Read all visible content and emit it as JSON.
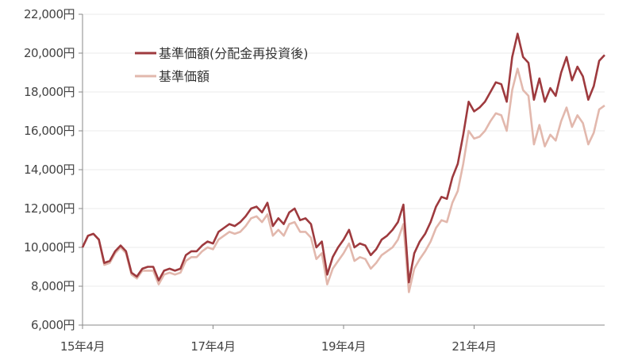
{
  "chart_data": {
    "type": "line",
    "title": "",
    "xlabel": "",
    "ylabel": "",
    "ylim": [
      6000,
      22000
    ],
    "yticks": [
      "6,000円",
      "8,000円",
      "10,000円",
      "12,000円",
      "14,000円",
      "16,000円",
      "18,000円",
      "20,000円",
      "22,000円"
    ],
    "ytick_values": [
      6000,
      8000,
      10000,
      12000,
      14000,
      16000,
      18000,
      20000,
      22000
    ],
    "xticks": [
      "15年4月",
      "17年4月",
      "19年4月",
      "21年4月"
    ],
    "xtick_values": [
      "2015-04",
      "2017-04",
      "2019-04",
      "2021-04"
    ],
    "grid": true,
    "legend_position": "top-left",
    "x": [
      "2015-04",
      "2015-05",
      "2015-06",
      "2015-07",
      "2015-08",
      "2015-09",
      "2015-10",
      "2015-11",
      "2015-12",
      "2016-01",
      "2016-02",
      "2016-03",
      "2016-04",
      "2016-05",
      "2016-06",
      "2016-07",
      "2016-08",
      "2016-09",
      "2016-10",
      "2016-11",
      "2016-12",
      "2017-01",
      "2017-02",
      "2017-03",
      "2017-04",
      "2017-05",
      "2017-06",
      "2017-07",
      "2017-08",
      "2017-09",
      "2017-10",
      "2017-11",
      "2017-12",
      "2018-01",
      "2018-02",
      "2018-03",
      "2018-04",
      "2018-05",
      "2018-06",
      "2018-07",
      "2018-08",
      "2018-09",
      "2018-10",
      "2018-11",
      "2018-12",
      "2019-01",
      "2019-02",
      "2019-03",
      "2019-04",
      "2019-05",
      "2019-06",
      "2019-07",
      "2019-08",
      "2019-09",
      "2019-10",
      "2019-11",
      "2019-12",
      "2020-01",
      "2020-02",
      "2020-03",
      "2020-04",
      "2020-05",
      "2020-06",
      "2020-07",
      "2020-08",
      "2020-09",
      "2020-10",
      "2020-11",
      "2020-12",
      "2021-01",
      "2021-02",
      "2021-03",
      "2021-04",
      "2021-05",
      "2021-06",
      "2021-07",
      "2021-08",
      "2021-09",
      "2021-10",
      "2021-11",
      "2021-12",
      "2022-01",
      "2022-02",
      "2022-03",
      "2022-04",
      "2022-05",
      "2022-06",
      "2022-07",
      "2022-08",
      "2022-09",
      "2022-10",
      "2022-11",
      "2022-12",
      "2023-01",
      "2023-02",
      "2023-03",
      "2023-04"
    ],
    "series": [
      {
        "name": "基準価額",
        "color": "#e2b8ad",
        "values": [
          10000,
          10600,
          10700,
          10400,
          9100,
          9200,
          9700,
          10000,
          9700,
          8600,
          8400,
          8800,
          8800,
          8800,
          8100,
          8600,
          8700,
          8600,
          8700,
          9300,
          9500,
          9500,
          9800,
          10000,
          9900,
          10400,
          10600,
          10800,
          10700,
          10800,
          11100,
          11500,
          11600,
          11300,
          11700,
          10600,
          10900,
          10600,
          11200,
          11300,
          10800,
          10800,
          10500,
          9400,
          9700,
          8100,
          8900,
          9300,
          9700,
          10200,
          9300,
          9500,
          9400,
          8900,
          9200,
          9600,
          9800,
          10000,
          10400,
          11200,
          7700,
          8900,
          9400,
          9800,
          10300,
          11000,
          11400,
          11300,
          12300,
          12900,
          14300,
          16000,
          15600,
          15700,
          16000,
          16500,
          16900,
          16800,
          16000,
          18100,
          19200,
          18100,
          17800,
          15300,
          16300,
          15200,
          15800,
          15500,
          16500,
          17200,
          16200,
          16800,
          16400,
          15300,
          15900,
          17100,
          17300
        ]
      },
      {
        "name": "基準価額(分配金再投資後)",
        "color": "#9e3a3e",
        "values": [
          10000,
          10600,
          10700,
          10400,
          9200,
          9300,
          9800,
          10100,
          9800,
          8700,
          8500,
          8900,
          9000,
          9000,
          8300,
          8800,
          8900,
          8800,
          8900,
          9600,
          9800,
          9800,
          10100,
          10300,
          10200,
          10800,
          11000,
          11200,
          11100,
          11300,
          11600,
          12000,
          12100,
          11800,
          12300,
          11100,
          11500,
          11200,
          11800,
          12000,
          11400,
          11500,
          11200,
          10000,
          10300,
          8600,
          9500,
          10000,
          10400,
          10900,
          10000,
          10200,
          10100,
          9600,
          9900,
          10400,
          10600,
          10900,
          11300,
          12200,
          8200,
          9700,
          10300,
          10700,
          11300,
          12100,
          12600,
          12500,
          13600,
          14300,
          15800,
          17500,
          17000,
          17200,
          17500,
          18000,
          18500,
          18400,
          17500,
          19800,
          21000,
          19800,
          19500,
          17600,
          18700,
          17500,
          18200,
          17800,
          19000,
          19800,
          18600,
          19300,
          18800,
          17600,
          18300,
          19600,
          19900
        ]
      }
    ],
    "legend": [
      {
        "label": "基準価額(分配金再投資後)",
        "color": "#9e3a3e"
      },
      {
        "label": "基準価額",
        "color": "#e2b8ad"
      }
    ]
  }
}
